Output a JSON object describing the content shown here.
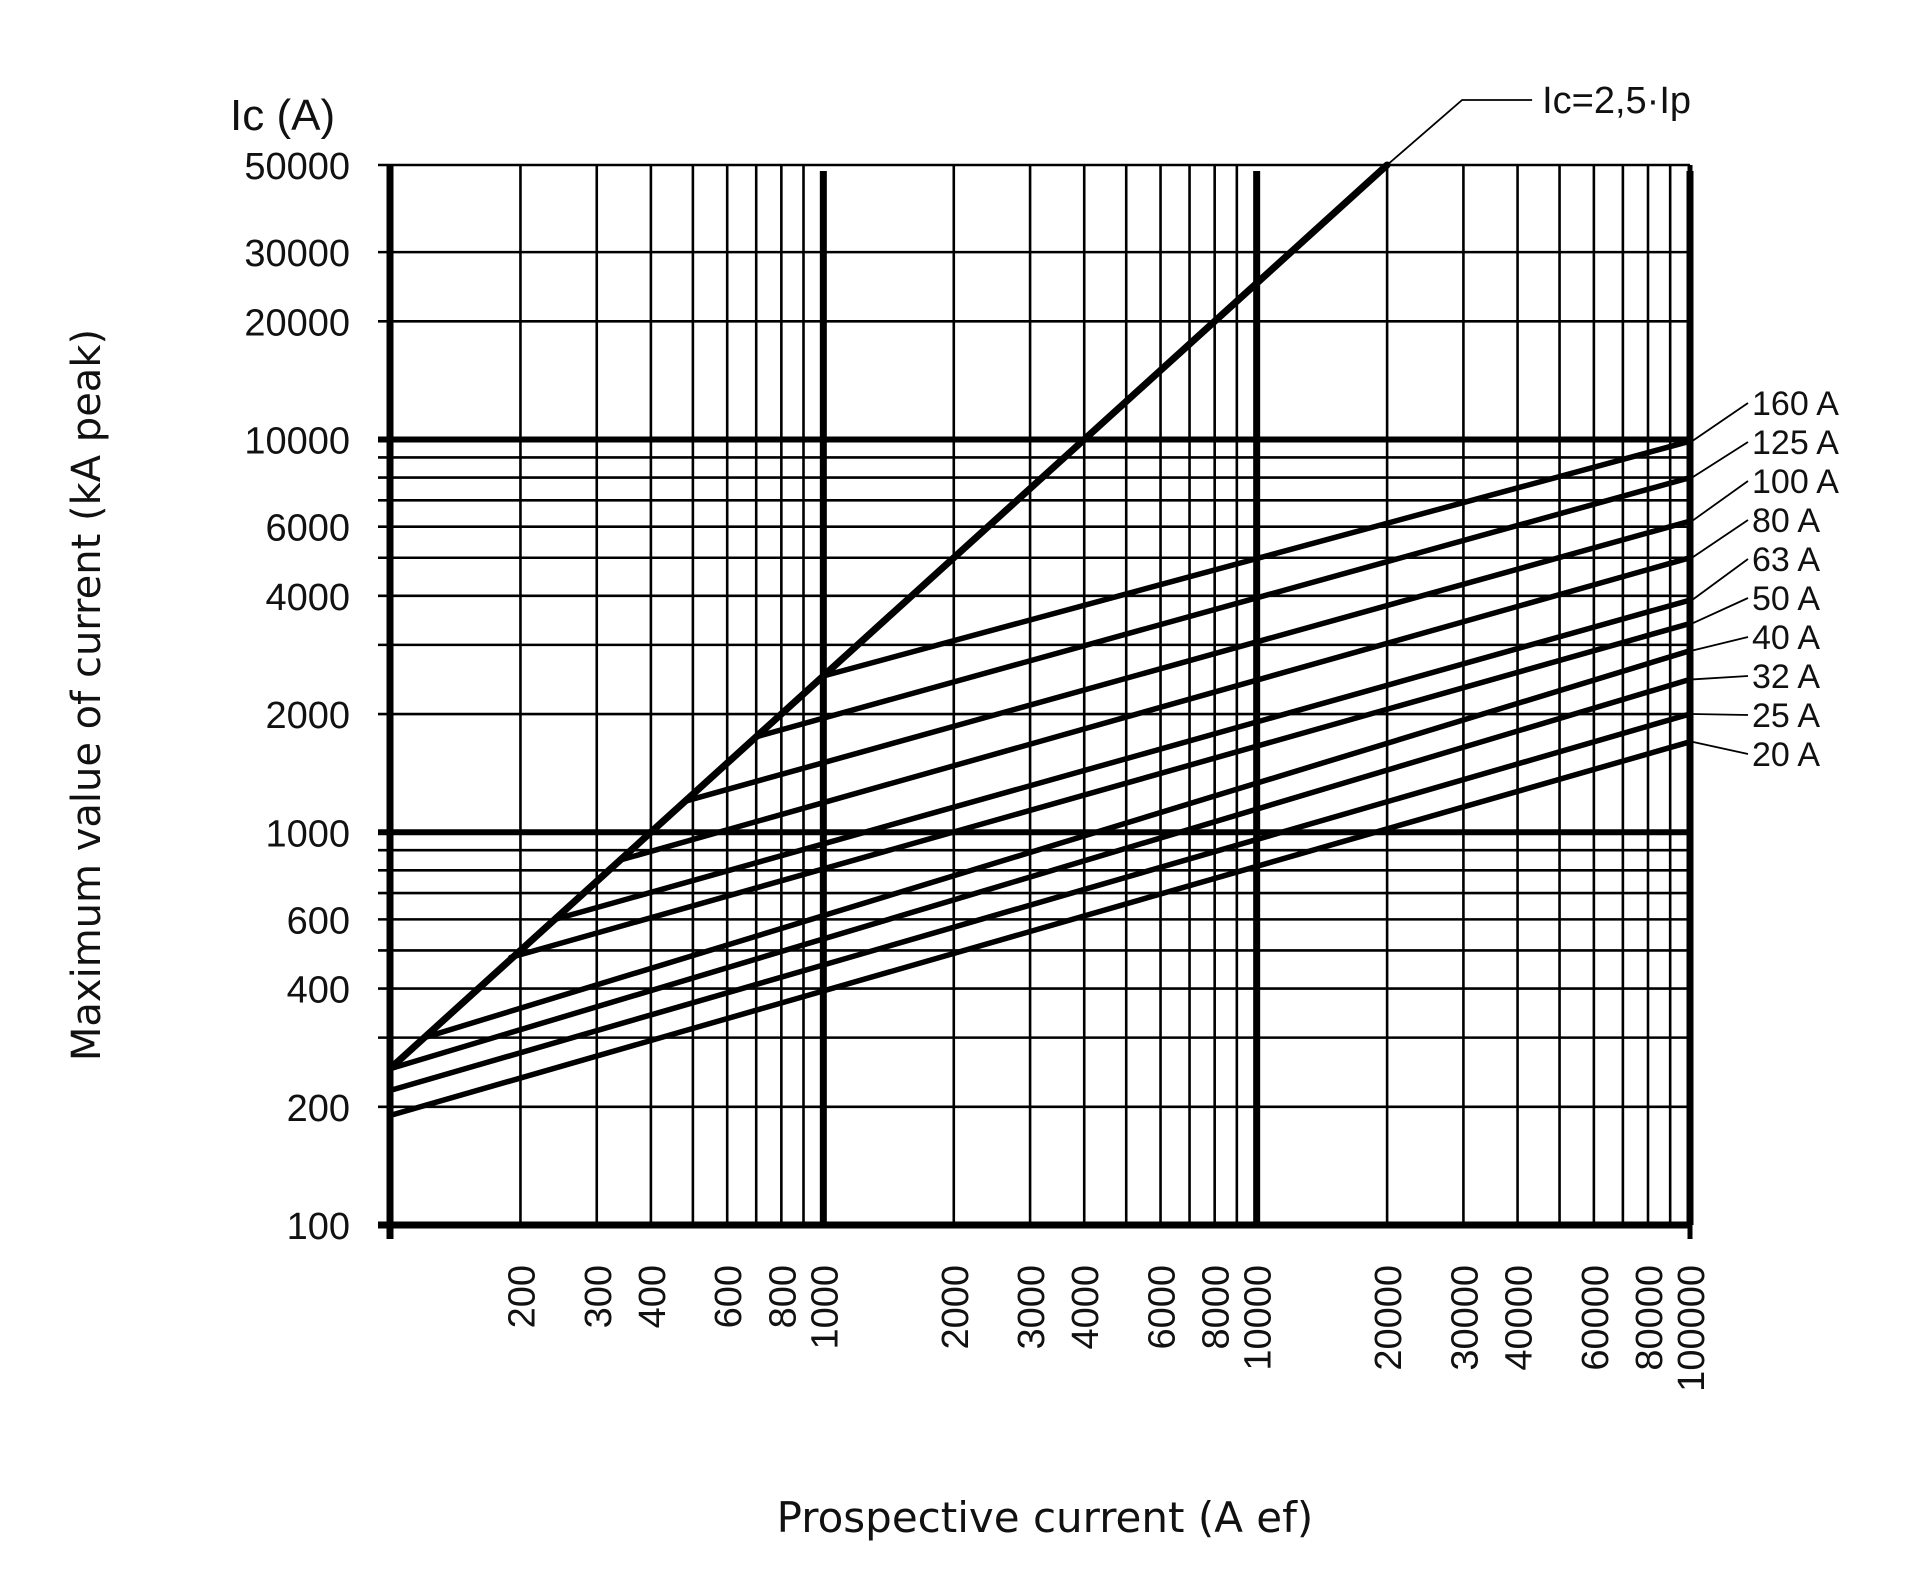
{
  "chart_data": {
    "type": "line",
    "title": "",
    "xlabel": "Prospective current (A ef)",
    "ylabel": "Maximum value of current (kA peak)",
    "y_unit_label": "Ic (A)",
    "x_scale": "log",
    "y_scale": "log",
    "xlim": [
      100,
      100000
    ],
    "ylim": [
      100,
      50000
    ],
    "grid": true,
    "legend": "right edge, line labels",
    "x_ticks": [
      200,
      300,
      400,
      600,
      800,
      1000,
      2000,
      3000,
      4000,
      6000,
      8000,
      10000,
      20000,
      30000,
      40000,
      60000,
      80000,
      100000
    ],
    "x_tick_labels": [
      "200",
      "300",
      "400",
      "600",
      "800",
      "1000",
      "2000",
      "3000",
      "4000",
      "6000",
      "8000",
      "10000",
      "20000",
      "30000",
      "40000",
      "60000",
      "80000",
      "100000"
    ],
    "y_ticks": [
      100,
      200,
      400,
      600,
      1000,
      2000,
      4000,
      6000,
      10000,
      20000,
      30000,
      50000
    ],
    "y_tick_labels": [
      "100",
      "200",
      "400",
      "600",
      "1000",
      "2000",
      "4000",
      "6000",
      "10000",
      "20000",
      "30000",
      "50000"
    ],
    "x_grid_lines": [
      100,
      200,
      300,
      400,
      500,
      600,
      700,
      800,
      900,
      1000,
      2000,
      3000,
      4000,
      5000,
      6000,
      7000,
      8000,
      9000,
      10000,
      20000,
      30000,
      40000,
      50000,
      60000,
      70000,
      80000,
      90000,
      100000
    ],
    "x_major_lines": [
      100,
      1000,
      10000,
      100000
    ],
    "y_grid_lines": [
      100,
      200,
      300,
      400,
      500,
      600,
      700,
      800,
      900,
      1000,
      2000,
      3000,
      4000,
      5000,
      6000,
      7000,
      8000,
      9000,
      10000,
      20000,
      30000,
      50000
    ],
    "y_major_lines": [
      1000,
      10000
    ],
    "series": [
      {
        "name": "Ic=2,5·Ip",
        "x": [
          100,
          20000
        ],
        "y": [
          250,
          50000
        ]
      },
      {
        "name": "160 A",
        "x": [
          1000,
          100000
        ],
        "y": [
          2500,
          9900
        ]
      },
      {
        "name": "125 A",
        "x": [
          700,
          100000
        ],
        "y": [
          1750,
          8000
        ]
      },
      {
        "name": "100 A",
        "x": [
          480,
          100000
        ],
        "y": [
          1200,
          6200
        ]
      },
      {
        "name": "80 A",
        "x": [
          340,
          100000
        ],
        "y": [
          850,
          5000
        ]
      },
      {
        "name": "63 A",
        "x": [
          240,
          100000
        ],
        "y": [
          600,
          3900
        ]
      },
      {
        "name": "50 A",
        "x": [
          190,
          100000
        ],
        "y": [
          480,
          3400
        ]
      },
      {
        "name": "40 A",
        "x": [
          120,
          100000
        ],
        "y": [
          300,
          2900
        ]
      },
      {
        "name": "32 A",
        "x": [
          100,
          100000
        ],
        "y": [
          250,
          2450
        ]
      },
      {
        "name": "25 A",
        "x": [
          100,
          100000
        ],
        "y": [
          220,
          2000
        ]
      },
      {
        "name": "20 A",
        "x": [
          100,
          100000
        ],
        "y": [
          190,
          1700
        ]
      }
    ]
  }
}
